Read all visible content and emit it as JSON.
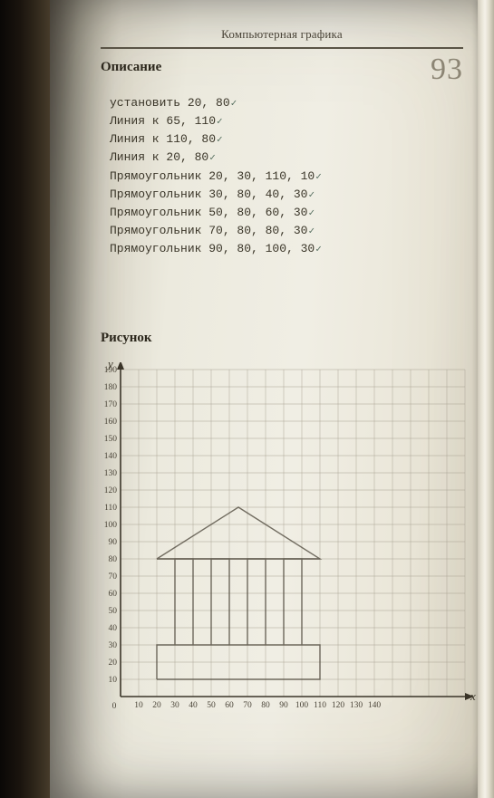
{
  "running_header": "Компьютерная графика",
  "page_number": "93",
  "section_description": "Описание",
  "section_figure": "Рисунок",
  "description_lines": [
    "установить 20, 80",
    "Линия к 65, 110",
    "Линия к 110, 80",
    "Линия к 20, 80",
    "Прямоугольник 20, 30, 110, 10",
    "Прямоугольник 30, 80, 40, 30",
    "Прямоугольник 50, 80, 60, 30",
    "Прямоугольник 70, 80, 80, 30",
    "Прямоугольник 90, 80, 100, 30"
  ],
  "check_indices": [
    0,
    1,
    2,
    3,
    4,
    5,
    6,
    7,
    8
  ],
  "chart": {
    "type": "grid-plot",
    "x_label": "x",
    "y_label": "y",
    "xlim": [
      0,
      190
    ],
    "ylim": [
      0,
      190
    ],
    "x_ticks": [
      10,
      20,
      30,
      40,
      50,
      60,
      70,
      80,
      90,
      100,
      110,
      120,
      130,
      140
    ],
    "y_ticks": [
      10,
      20,
      30,
      40,
      50,
      60,
      70,
      80,
      90,
      100,
      110,
      120,
      130,
      140,
      150,
      160,
      170,
      180,
      190
    ],
    "grid_step": 10,
    "grid_color": "#a8a292",
    "axis_color": "#3a3428",
    "background_color": "transparent",
    "tick_fontsize": 9.5,
    "axis_label_fontsize": 13,
    "pencil_shapes": {
      "roof": [
        [
          20,
          80
        ],
        [
          65,
          110
        ],
        [
          110,
          80
        ],
        [
          20,
          80
        ]
      ],
      "body": [
        [
          20,
          10
        ],
        [
          110,
          10
        ],
        [
          110,
          30
        ],
        [
          20,
          30
        ],
        [
          20,
          10
        ]
      ],
      "columns": [
        [
          [
            30,
            30
          ],
          [
            30,
            80
          ],
          [
            40,
            80
          ],
          [
            40,
            30
          ]
        ],
        [
          [
            50,
            30
          ],
          [
            50,
            80
          ],
          [
            60,
            80
          ],
          [
            60,
            30
          ]
        ],
        [
          [
            70,
            30
          ],
          [
            70,
            80
          ],
          [
            80,
            80
          ],
          [
            80,
            30
          ]
        ],
        [
          [
            90,
            30
          ],
          [
            90,
            80
          ],
          [
            100,
            80
          ],
          [
            100,
            30
          ]
        ]
      ],
      "y_line_top": 80
    }
  }
}
